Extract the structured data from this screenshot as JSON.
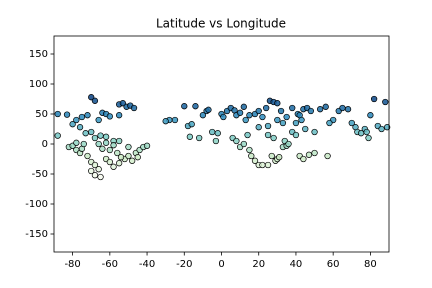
{
  "chart_data": {
    "type": "scatter",
    "title": "Latitude vs Longitude",
    "xlim": [
      -90,
      90
    ],
    "xticks": [
      -80,
      -60,
      -40,
      -20,
      0,
      20,
      40,
      60,
      80
    ],
    "ylim": [
      -180,
      180
    ],
    "yticks": [
      -150,
      -100,
      -50,
      0,
      50,
      100,
      150
    ],
    "colormap": [
      "#f7fcf0",
      "#ccebc5",
      "#7bccc4",
      "#2b8cbe",
      "#084081"
    ],
    "edgecolor": "#000000",
    "x": [
      -88,
      -83,
      -88,
      -80,
      -78,
      -76,
      -75,
      -72,
      -70,
      -68,
      -66,
      -64,
      -62,
      -60,
      -55,
      -53,
      -51,
      -49,
      -47,
      -55,
      -73,
      -70,
      -68,
      -65,
      -62,
      -58,
      -55,
      -82,
      -80,
      -78,
      -76,
      -75,
      -72,
      -70,
      -68,
      -70,
      -68,
      -65,
      -66,
      -62,
      -60,
      -58,
      -55,
      -52,
      -50,
      -48,
      -46,
      -44,
      -42,
      -40,
      -45,
      -64,
      -60,
      -56,
      -54,
      -50,
      -58,
      -62,
      -74,
      -78,
      -66,
      -28,
      -25,
      -20,
      -18,
      -16,
      -14,
      -10,
      -8,
      -7,
      -5,
      -3,
      -2,
      0,
      1,
      3,
      5,
      7,
      8,
      10,
      12,
      13,
      15,
      -12,
      -17,
      6,
      8,
      10,
      12,
      14,
      15,
      16,
      18,
      20,
      22,
      25,
      27,
      29,
      30,
      31,
      33,
      34,
      35,
      36,
      18,
      20,
      22,
      24,
      26,
      28,
      30,
      32,
      35,
      38,
      40,
      41,
      42,
      43,
      44,
      45,
      46,
      48,
      50,
      38,
      40,
      42,
      44,
      47,
      50,
      57,
      56,
      60,
      63,
      65,
      68,
      70,
      72,
      73,
      75,
      77,
      80,
      82,
      84,
      86,
      88,
      89,
      79,
      20,
      25,
      30,
      33,
      -30,
      53,
      58,
      78,
      25,
      28
    ],
    "y": [
      50,
      49,
      14,
      33,
      40,
      28,
      45,
      48,
      78,
      72,
      40,
      52,
      50,
      46,
      66,
      68,
      62,
      64,
      60,
      48,
      18,
      20,
      10,
      14,
      12,
      5,
      5,
      -5,
      -3,
      -10,
      -15,
      -8,
      -20,
      -30,
      -35,
      -45,
      -52,
      -55,
      -42,
      -25,
      -30,
      -38,
      -32,
      -25,
      -20,
      -28,
      -15,
      -10,
      -5,
      -3,
      -22,
      -8,
      -10,
      -15,
      -22,
      -5,
      -2,
      2,
      0,
      2,
      0,
      40,
      40,
      63,
      30,
      33,
      63,
      48,
      55,
      57,
      20,
      5,
      18,
      50,
      45,
      55,
      60,
      56,
      48,
      52,
      62,
      40,
      48,
      10,
      12,
      10,
      5,
      -5,
      0,
      15,
      -10,
      -20,
      -28,
      -35,
      -35,
      -35,
      -20,
      -28,
      -25,
      -22,
      -5,
      5,
      -3,
      0,
      50,
      55,
      45,
      60,
      72,
      70,
      68,
      55,
      45,
      60,
      35,
      50,
      48,
      40,
      58,
      25,
      60,
      55,
      20,
      20,
      15,
      -20,
      -25,
      -18,
      -15,
      -20,
      62,
      40,
      55,
      60,
      58,
      35,
      28,
      20,
      18,
      25,
      48,
      75,
      30,
      25,
      70,
      28,
      10,
      28,
      30,
      40,
      35,
      38,
      58,
      35,
      20,
      15,
      10
    ]
  }
}
